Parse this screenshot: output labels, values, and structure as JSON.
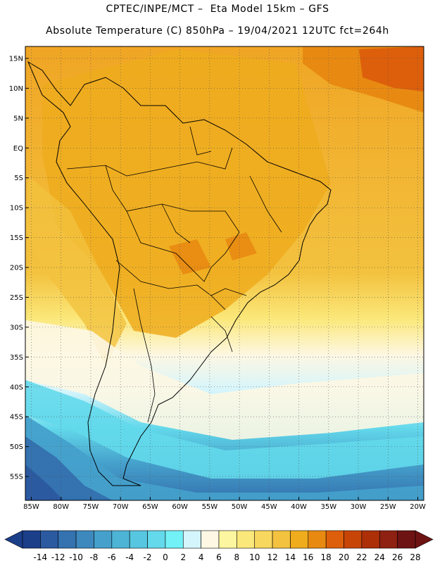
{
  "header": {
    "line1": "CPTEC/INPE/MCT –  Eta Model 15km – GFS",
    "line2": "Absolute Temperature (C) 850hPa – 19/04/2021 12UTC fct=264h"
  },
  "map": {
    "lon_min": -86,
    "lon_max": -19,
    "lat_min": -59,
    "lat_max": 17,
    "lon_labels": [
      {
        "lon": -85,
        "text": "85W"
      },
      {
        "lon": -80,
        "text": "80W"
      },
      {
        "lon": -75,
        "text": "75W"
      },
      {
        "lon": -70,
        "text": "70W"
      },
      {
        "lon": -65,
        "text": "65W"
      },
      {
        "lon": -60,
        "text": "60W"
      },
      {
        "lon": -55,
        "text": "55W"
      },
      {
        "lon": -50,
        "text": "50W"
      },
      {
        "lon": -45,
        "text": "45W"
      },
      {
        "lon": -40,
        "text": "40W"
      },
      {
        "lon": -35,
        "text": "35W"
      },
      {
        "lon": -30,
        "text": "30W"
      },
      {
        "lon": -25,
        "text": "25W"
      },
      {
        "lon": -20,
        "text": "20W"
      }
    ],
    "lat_labels": [
      {
        "lat": 15,
        "text": "15N"
      },
      {
        "lat": 10,
        "text": "10N"
      },
      {
        "lat": 5,
        "text": "5N"
      },
      {
        "lat": 0,
        "text": "EQ"
      },
      {
        "lat": -5,
        "text": "5S"
      },
      {
        "lat": -10,
        "text": "10S"
      },
      {
        "lat": -15,
        "text": "15S"
      },
      {
        "lat": -20,
        "text": "20S"
      },
      {
        "lat": -25,
        "text": "25S"
      },
      {
        "lat": -30,
        "text": "30S"
      },
      {
        "lat": -35,
        "text": "35S"
      },
      {
        "lat": -40,
        "text": "40S"
      },
      {
        "lat": -45,
        "text": "45S"
      },
      {
        "lat": -50,
        "text": "50S"
      },
      {
        "lat": -55,
        "text": "55S"
      }
    ]
  },
  "colorbar": {
    "colors": [
      "#1c3f8a",
      "#2b5aa0",
      "#3472b0",
      "#3d89be",
      "#45a0cb",
      "#4db4d6",
      "#57c6e0",
      "#63d9eb",
      "#72f1f7",
      "#d5f5fc",
      "#fdf7e3",
      "#fdf6a0",
      "#fbe87a",
      "#f8d75e",
      "#f3c23f",
      "#efac1d",
      "#e88a12",
      "#dd5f0b",
      "#c84508",
      "#ac2f08",
      "#8e2111",
      "#6e1313"
    ],
    "tick_labels": [
      "-14",
      "-12",
      "-10",
      "-8",
      "-6",
      "-4",
      "-2",
      "0",
      "2",
      "4",
      "6",
      "8",
      "10",
      "12",
      "14",
      "16",
      "18",
      "20",
      "22",
      "24",
      "26",
      "28"
    ]
  }
}
